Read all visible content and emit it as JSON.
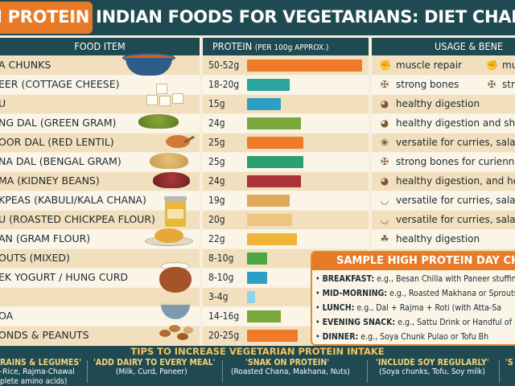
{
  "title": {
    "part1": "GH PROTEIN",
    "part2": "INDIAN FOODS FOR VEGETARIANS: DIET CHART INFOGR"
  },
  "headers": {
    "food": "FOOD ITEM",
    "protein": "PROTEIN",
    "protein_note": "(PER 100g APPROX.)",
    "usage": "USAGE & BENE"
  },
  "rows": [
    {
      "food": "A CHUNKS",
      "protein": "50-52g",
      "value": 51,
      "color": "#ee7a2a",
      "use_icon": "muscle-icon",
      "use": "muscle repair",
      "use2_icon": "muscle-icon",
      "use2": "mu"
    },
    {
      "food": "EER (COTTAGE CHEESE)",
      "protein": "18-20g",
      "value": 19,
      "color": "#2aa59b",
      "use_icon": "bone-icon",
      "use": "strong bones",
      "use2_icon": "bone-icon",
      "use2": "str"
    },
    {
      "food": "U",
      "protein": "15g",
      "value": 15,
      "color": "#2e9fc4",
      "use_icon": "stomach-icon",
      "use": "healthy digestion",
      "use2_icon": "",
      "use2": ""
    },
    {
      "food": "NG DAL (GREEN GRAM)",
      "protein": "24g",
      "value": 24,
      "color": "#7aa83a",
      "use_icon": "stomach-icon",
      "use": "healthy digestion and sh",
      "use2_icon": "",
      "use2": ""
    },
    {
      "food": "OOR DAL (RED LENTIL)",
      "protein": "25g",
      "value": 25,
      "color": "#ee7a2a",
      "use_icon": "spice-icon",
      "use": "versatile for curries, salad",
      "use2_icon": "",
      "use2": ""
    },
    {
      "food": "NA DAL (BENGAL GRAM)",
      "protein": "25g",
      "value": 25,
      "color": "#2aa070",
      "use_icon": "bone-icon",
      "use": "strong bones for curiennh",
      "use2_icon": "",
      "use2": ""
    },
    {
      "food": "MA (KIDNEY BEANS)",
      "protein": "24g",
      "value": 24,
      "color": "#a8343a",
      "use_icon": "stomach-icon",
      "use": "healthy digestion, and he",
      "use2_icon": "",
      "use2": ""
    },
    {
      "food": "KPEAS (KABULI/KALA CHANA)",
      "protein": "19g",
      "value": 19,
      "color": "#e0a85a",
      "use_icon": "bowl-icon",
      "use": "versatile for curries, salad",
      "use2_icon": "",
      "use2": ""
    },
    {
      "food": "U (ROASTED CHICKPEA FLOUR)",
      "protein": "20g",
      "value": 20,
      "color": "#ecc680",
      "use_icon": "bowl-icon",
      "use": "versatile for curries, salad",
      "use2_icon": "",
      "use2": ""
    },
    {
      "food": "AN (GRAM FLOUR)",
      "protein": "22g",
      "value": 22,
      "color": "#f0b438",
      "use_icon": "leaf-icon",
      "use": "healthy digestion",
      "use2_icon": "",
      "use2": ""
    },
    {
      "food": "OUTS (MIXED)",
      "protein": "8-10g",
      "value": 9,
      "color": "#4aa844",
      "use_icon": "",
      "use": "",
      "use2_icon": "",
      "use2": ""
    },
    {
      "food": "EK YOGURT / HUNG CURD",
      "protein": "8-10g",
      "value": 9,
      "color": "#2e9fc4",
      "use_icon": "",
      "use": "",
      "use2_icon": "",
      "use2": ""
    },
    {
      "food": "",
      "protein": "3-4g",
      "value": 3.5,
      "color": "#8fd4ea",
      "use_icon": "",
      "use": "",
      "use2_icon": "",
      "use2": ""
    },
    {
      "food": "OA",
      "protein": "14-16g",
      "value": 15,
      "color": "#7aa83a",
      "use_icon": "",
      "use": "",
      "use2_icon": "",
      "use2": ""
    },
    {
      "food": "ONDS & PEANUTS",
      "protein": "20-25g",
      "value": 22.5,
      "color": "#ee7a2a",
      "use_icon": "",
      "use": "",
      "use2_icon": "",
      "use2": ""
    }
  ],
  "sample": {
    "title": "SAMPLE HIGH PROTEIN DAY CH",
    "meals": [
      {
        "label": "BREAKFAST:",
        "text": "e.g., Besan Chilla with Paneer stuffin"
      },
      {
        "label": "MID-MORNING:",
        "text": "e.g., Roasted Makhana or Sprouts Sa"
      },
      {
        "label": "LUNCH:",
        "text": "e.g., Dal + Rajma + Roti (with Atta-Sa"
      },
      {
        "label": "EVENING SNACK:",
        "text": "e.g., Sattu Drink or Handful of Nu"
      },
      {
        "label": "DINNER:",
        "text": "e.g., Soya Chunk Pulao or Tofu Bh"
      }
    ]
  },
  "tips": {
    "title": "TIPS TO INCREASE VEGETARIAN PROTEIN INTAKE",
    "items": [
      {
        "head": "RAINS & LEGUMES'",
        "sub": "-Rice, Rajma-Chawal",
        "sub2": "plete amino acids)"
      },
      {
        "head": "'ADD DAIRY TO EVERY MEAL'",
        "sub": "(Milk, Curd, Paneer)",
        "sub2": ""
      },
      {
        "head": "'SNAK ON PROTEIN'",
        "sub": "(Roasted Chana, Makhana, Nuts)",
        "sub2": ""
      },
      {
        "head": "'INCLUDE SOY REGULARLY'",
        "sub": "(Soya chunks, Tofu, Soy milk)",
        "sub2": ""
      },
      {
        "head": "'S",
        "sub": "",
        "sub2": ""
      }
    ]
  },
  "colors": {
    "header": "#1f4a52",
    "accent": "#e87a27",
    "row_light": "#fbf5e8",
    "row_alt": "#f2dfbd"
  }
}
